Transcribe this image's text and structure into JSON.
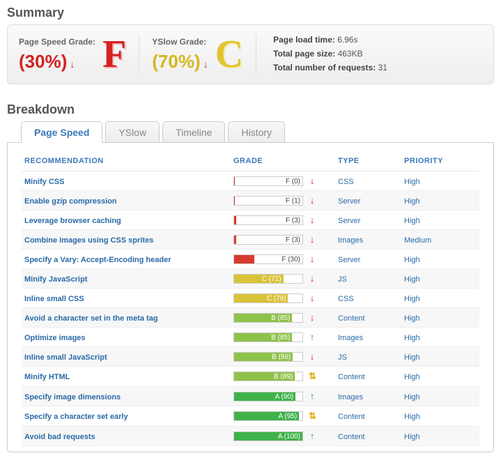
{
  "sections": {
    "summary": "Summary",
    "breakdown": "Breakdown"
  },
  "summary": {
    "pagespeed": {
      "label": "Page Speed Grade:",
      "pct": "(30%)",
      "letter": "F"
    },
    "yslow": {
      "label": "YSlow Grade:",
      "pct": "(70%)",
      "letter": "C"
    },
    "stats": {
      "loadtime_label": "Page load time:",
      "loadtime": "6.96s",
      "pagesize_label": "Total page size:",
      "pagesize": "463KB",
      "requests_label": "Total number of requests:",
      "requests": "31"
    }
  },
  "tabs": {
    "pagespeed": "Page Speed",
    "yslow": "YSlow",
    "timeline": "Timeline",
    "history": "History"
  },
  "table": {
    "headers": {
      "rec": "RECOMMENDATION",
      "grade": "GRADE",
      "type": "TYPE",
      "priority": "PRIORITY"
    },
    "bar_colors": {
      "F": "#d83a2e",
      "C": "#d9c33a",
      "B": "#8fc24a",
      "A": "#3fb24a"
    },
    "rows": [
      {
        "rec": "Minify CSS",
        "letter": "F",
        "score": 0,
        "dir": "down",
        "type": "CSS",
        "priority": "High"
      },
      {
        "rec": "Enable gzip compression",
        "letter": "F",
        "score": 1,
        "dir": "down",
        "type": "Server",
        "priority": "High"
      },
      {
        "rec": "Leverage browser caching",
        "letter": "F",
        "score": 3,
        "dir": "down",
        "type": "Server",
        "priority": "High"
      },
      {
        "rec": "Combine images using CSS sprites",
        "letter": "F",
        "score": 3,
        "dir": "down",
        "type": "Images",
        "priority": "Medium"
      },
      {
        "rec": "Specify a Vary: Accept-Encoding header",
        "letter": "F",
        "score": 30,
        "dir": "down",
        "type": "Server",
        "priority": "High"
      },
      {
        "rec": "Minify JavaScript",
        "letter": "C",
        "score": 72,
        "dir": "down",
        "type": "JS",
        "priority": "High"
      },
      {
        "rec": "Inline small CSS",
        "letter": "C",
        "score": 79,
        "dir": "down",
        "type": "CSS",
        "priority": "High"
      },
      {
        "rec": "Avoid a character set in the meta tag",
        "letter": "B",
        "score": 85,
        "dir": "down",
        "type": "Content",
        "priority": "High"
      },
      {
        "rec": "Optimize images",
        "letter": "B",
        "score": 85,
        "dir": "up",
        "type": "Images",
        "priority": "High"
      },
      {
        "rec": "Inline small JavaScript",
        "letter": "B",
        "score": 86,
        "dir": "down",
        "type": "JS",
        "priority": "High"
      },
      {
        "rec": "Minify HTML",
        "letter": "B",
        "score": 89,
        "dir": "both",
        "type": "Content",
        "priority": "High"
      },
      {
        "rec": "Specify image dimensions",
        "letter": "A",
        "score": 90,
        "dir": "up",
        "type": "Images",
        "priority": "High"
      },
      {
        "rec": "Specify a character set early",
        "letter": "A",
        "score": 95,
        "dir": "both",
        "type": "Content",
        "priority": "High"
      },
      {
        "rec": "Avoid bad requests",
        "letter": "A",
        "score": 100,
        "dir": "up",
        "type": "Content",
        "priority": "High"
      }
    ]
  }
}
